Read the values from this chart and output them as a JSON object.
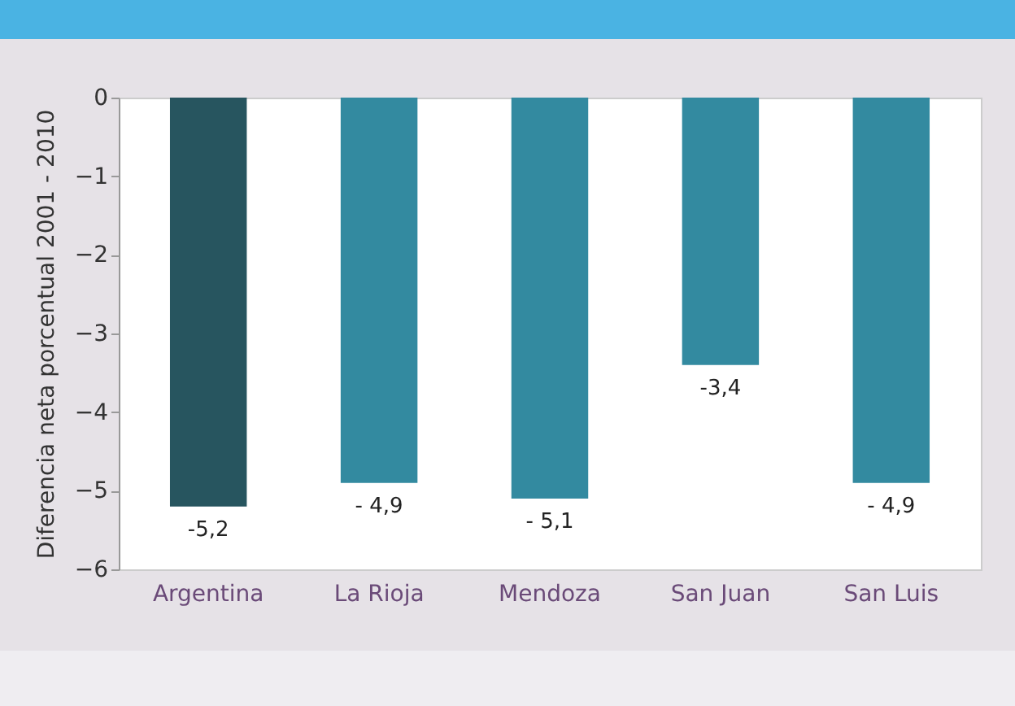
{
  "chart_data": {
    "type": "bar",
    "ylabel": "Diferencia neta porcentual 2001 - 2010",
    "categories": [
      "Argentina",
      "La Rioja",
      "Mendoza",
      "San Juan",
      "San Luis"
    ],
    "values": [
      -5.2,
      -4.9,
      -5.1,
      -3.4,
      -4.9
    ],
    "colors": [
      "#27555f",
      "#338aa0",
      "#338aa0",
      "#338aa0",
      "#338aa0"
    ],
    "value_labels": [
      "-5,2",
      "- 4,9",
      "- 5,1",
      "-3,4",
      "- 4,9"
    ],
    "ylim": [
      -6,
      0
    ],
    "yticks": [
      0,
      -1,
      -2,
      -3,
      -4,
      -5,
      -6
    ]
  }
}
